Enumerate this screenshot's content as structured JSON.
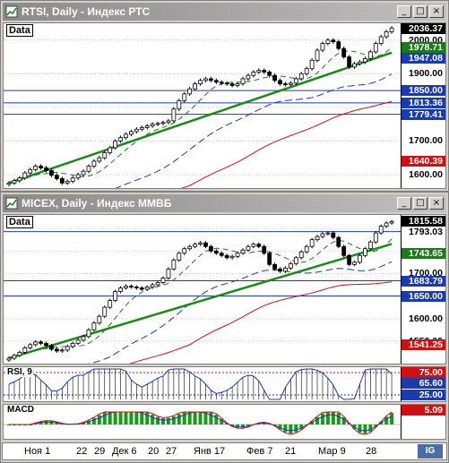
{
  "windows": [
    {
      "title": "RTSI, Daily - Индекс РТС",
      "data_label": "Data",
      "price_labels": [
        {
          "text": "2036.37",
          "bg": "#000000",
          "fg": "#ffffff"
        },
        {
          "text": "2000.00",
          "bg": "#ffffff",
          "fg": "#000000"
        },
        {
          "text": "1978.71",
          "bg": "#1a7a1a",
          "fg": "#ffffff"
        },
        {
          "text": "1947.08",
          "bg": "#1a3ab0",
          "fg": "#ffffff"
        },
        {
          "text": "1900.00",
          "bg": "#ffffff",
          "fg": "#000000"
        },
        {
          "text": "1850.00",
          "bg": "#1a3ab0",
          "fg": "#ffffff"
        },
        {
          "text": "1813.36",
          "bg": "#1a3ab0",
          "fg": "#ffffff"
        },
        {
          "text": "1779.41",
          "bg": "#1a3ab0",
          "fg": "#ffffff"
        },
        {
          "text": "1700.00",
          "bg": "#ffffff",
          "fg": "#000000"
        },
        {
          "text": "1640.39",
          "bg": "#d01010",
          "fg": "#ffffff"
        },
        {
          "text": "1600.00",
          "bg": "#ffffff",
          "fg": "#000000"
        }
      ]
    },
    {
      "title": "MICEX, Daily - Индекс ММВБ",
      "data_label": "Data",
      "price_labels": [
        {
          "text": "1815.58",
          "bg": "#000000",
          "fg": "#ffffff"
        },
        {
          "text": "1793.03",
          "bg": "#ffffff",
          "fg": "#000000"
        },
        {
          "text": "1743.65",
          "bg": "#1a7a1a",
          "fg": "#ffffff"
        },
        {
          "text": "1700.00",
          "bg": "#ffffff",
          "fg": "#000000"
        },
        {
          "text": "1683.79",
          "bg": "#1a3ab0",
          "fg": "#ffffff"
        },
        {
          "text": "1650.00",
          "bg": "#1a3ab0",
          "fg": "#ffffff"
        },
        {
          "text": "1600.00",
          "bg": "#ffffff",
          "fg": "#000000"
        },
        {
          "text": "1550.00",
          "bg": "#ffffff",
          "fg": "#000000"
        },
        {
          "text": "1541.25",
          "bg": "#d01010",
          "fg": "#ffffff"
        }
      ],
      "rsi": {
        "label": "RSI, 9",
        "levels": [
          "75.00",
          "65.60",
          "25.00"
        ]
      },
      "macd": {
        "label": "MACD",
        "levels": [
          "5.09"
        ]
      }
    }
  ],
  "x_axis": {
    "labels": [
      "Ноя 1",
      "22",
      "29",
      "Дек 6",
      "20",
      "27",
      "Янв 17",
      "Фев 7",
      "21",
      "Мар 9",
      "28"
    ],
    "corner_button": "IG"
  },
  "window_buttons": {
    "minimize": "_",
    "maximize": "□",
    "close": "×"
  },
  "chart_data": [
    {
      "type": "candlestick",
      "title": "RTSI, Daily - Индекс РТС",
      "ylim": [
        1560,
        2050
      ],
      "y_ticks": [
        1600,
        1700,
        1800,
        1900,
        2000
      ],
      "horizontal_levels": [
        1850.0,
        1813.36,
        1779.41
      ],
      "close": [
        1575,
        1582,
        1590,
        1605,
        1615,
        1625,
        1620,
        1612,
        1598,
        1588,
        1575,
        1580,
        1590,
        1600,
        1610,
        1625,
        1640,
        1650,
        1665,
        1680,
        1700,
        1710,
        1720,
        1728,
        1735,
        1740,
        1745,
        1750,
        1752,
        1755,
        1760,
        1795,
        1820,
        1840,
        1855,
        1870,
        1880,
        1885,
        1880,
        1875,
        1872,
        1870,
        1865,
        1870,
        1885,
        1895,
        1905,
        1910,
        1905,
        1895,
        1880,
        1870,
        1868,
        1872,
        1885,
        1900,
        1915,
        1940,
        1970,
        1990,
        2000,
        1995,
        1975,
        1950,
        1920,
        1930,
        1935,
        1945,
        1965,
        1990,
        2010,
        2025,
        2036
      ]
    },
    {
      "type": "candlestick",
      "title": "MICEX, Daily - Индекс ММВБ",
      "ylim": [
        1500,
        1830
      ],
      "y_ticks": [
        1550,
        1600,
        1650,
        1700,
        1750,
        1800
      ],
      "horizontal_levels": [
        1793.03,
        1683.79,
        1650.0
      ],
      "close": [
        1512,
        1518,
        1525,
        1535,
        1542,
        1548,
        1545,
        1540,
        1532,
        1528,
        1530,
        1538,
        1545,
        1552,
        1560,
        1575,
        1590,
        1605,
        1625,
        1640,
        1660,
        1668,
        1672,
        1670,
        1668,
        1665,
        1670,
        1675,
        1680,
        1690,
        1710,
        1730,
        1745,
        1755,
        1760,
        1765,
        1768,
        1760,
        1750,
        1745,
        1740,
        1735,
        1738,
        1745,
        1752,
        1760,
        1765,
        1760,
        1745,
        1720,
        1710,
        1705,
        1712,
        1722,
        1735,
        1748,
        1760,
        1775,
        1782,
        1788,
        1790,
        1780,
        1760,
        1740,
        1720,
        1725,
        1740,
        1755,
        1770,
        1790,
        1805,
        1812,
        1815
      ]
    }
  ]
}
